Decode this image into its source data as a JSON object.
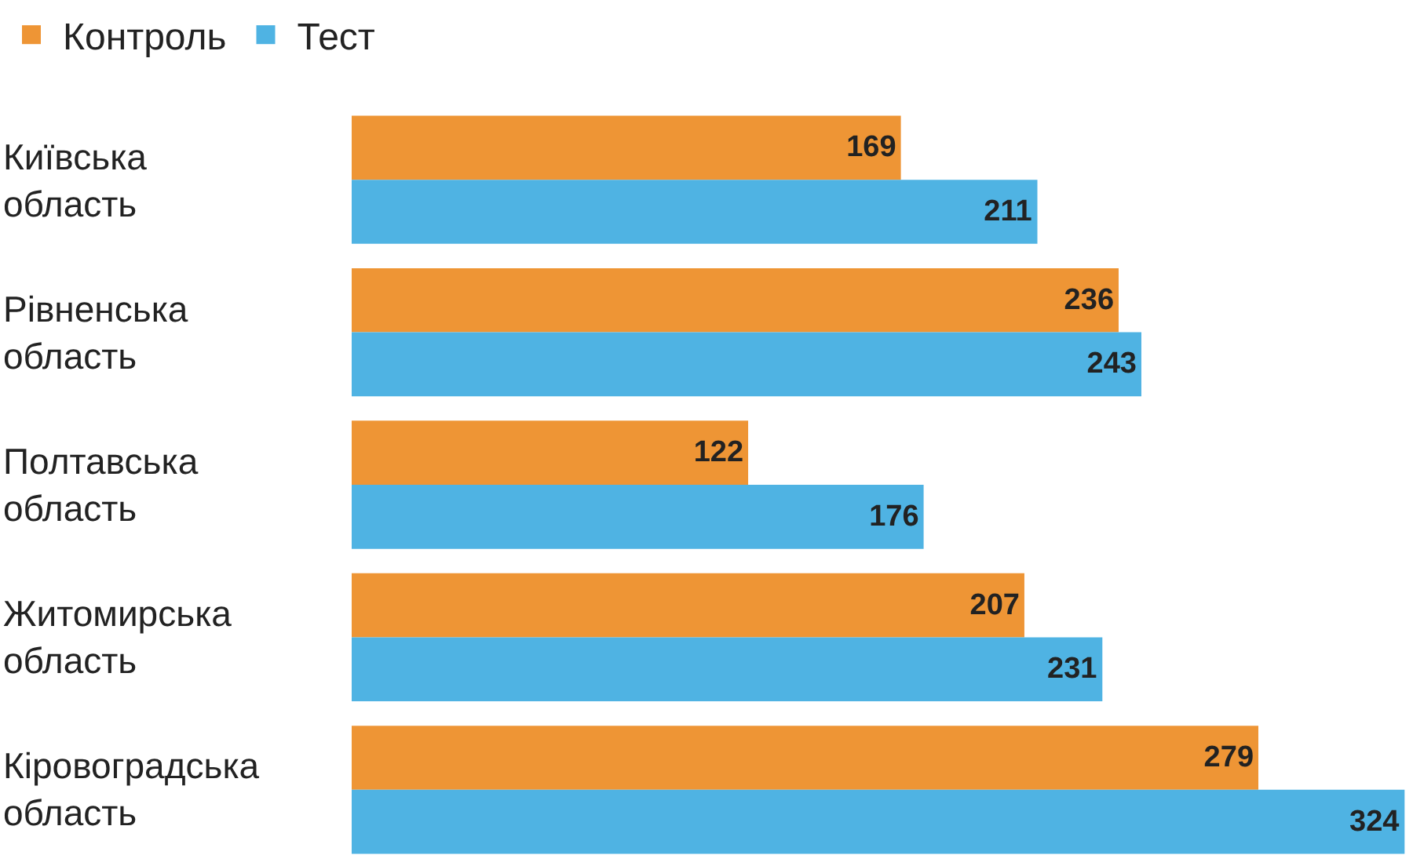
{
  "chart_data": {
    "type": "bar",
    "orientation": "horizontal",
    "data_labels": true,
    "legend": "top left",
    "categories": [
      "Київська область",
      "Рівненська область",
      "Полтавська область",
      "Житомирська область",
      "Кіровоградська область"
    ],
    "series": [
      {
        "name": "Контроль",
        "color": "#ee9535",
        "values": [
          169,
          236,
          122,
          207,
          279
        ]
      },
      {
        "name": "Тест",
        "color": "#4fb3e3",
        "values": [
          211,
          243,
          176,
          231,
          324
        ]
      }
    ]
  }
}
